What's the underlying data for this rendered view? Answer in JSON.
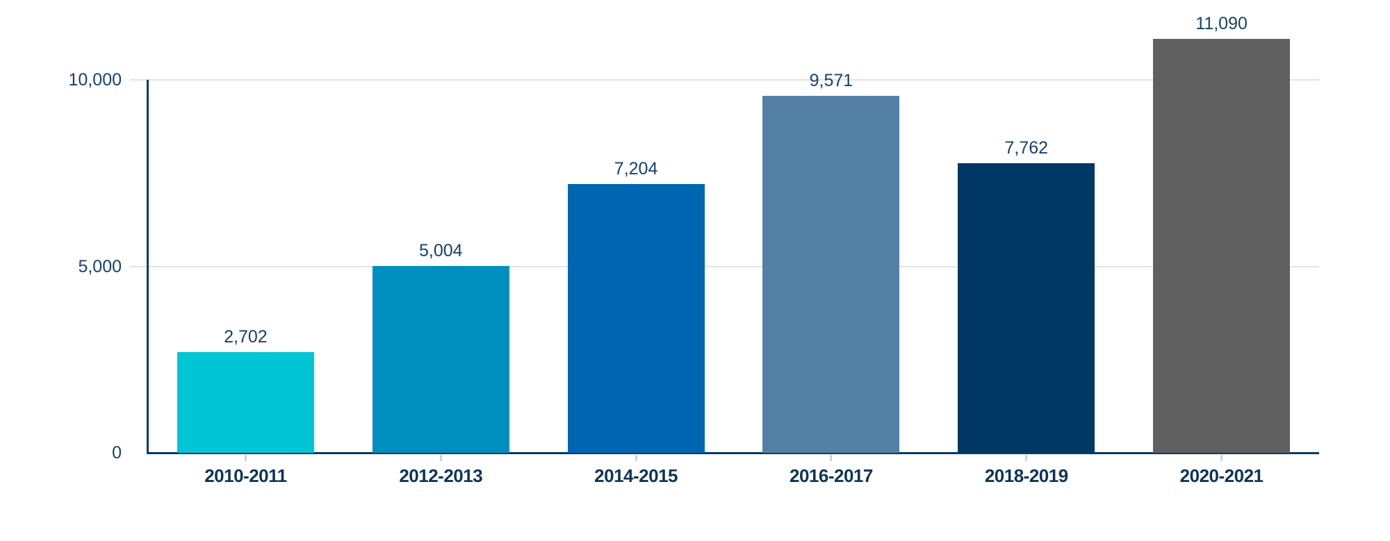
{
  "chart_data": {
    "type": "bar",
    "title": "",
    "xlabel": "",
    "ylabel": "",
    "categories": [
      "2010-2011",
      "2012-2013",
      "2014-2015",
      "2016-2017",
      "2018-2019",
      "2020-2021"
    ],
    "values": [
      2702,
      5004,
      7204,
      9571,
      7762,
      11090
    ],
    "value_labels": [
      "2,702",
      "5,004",
      "7,204",
      "9,571",
      "7,762",
      "11,090"
    ],
    "bar_colors": [
      "#00c5d5",
      "#008fbe",
      "#0066b2",
      "#5580a6",
      "#003865",
      "#606060"
    ],
    "yticks": [
      {
        "value": 0,
        "label": "0"
      },
      {
        "value": 5000,
        "label": "5,000"
      },
      {
        "value": 10000,
        "label": "10,000"
      }
    ],
    "ylim": [
      0,
      10000
    ],
    "grid": "horizontal",
    "legend_position": "none"
  },
  "colors": {
    "background": "#ffffff",
    "axis": "#04396a",
    "gridline": "#dde4ee",
    "ytick_mark": "#d4dbe6",
    "xtick_mark": "#c9d4e2",
    "value_label": "#16406f",
    "ytick_label": "#16406f",
    "category_label": "#0d3456"
  }
}
